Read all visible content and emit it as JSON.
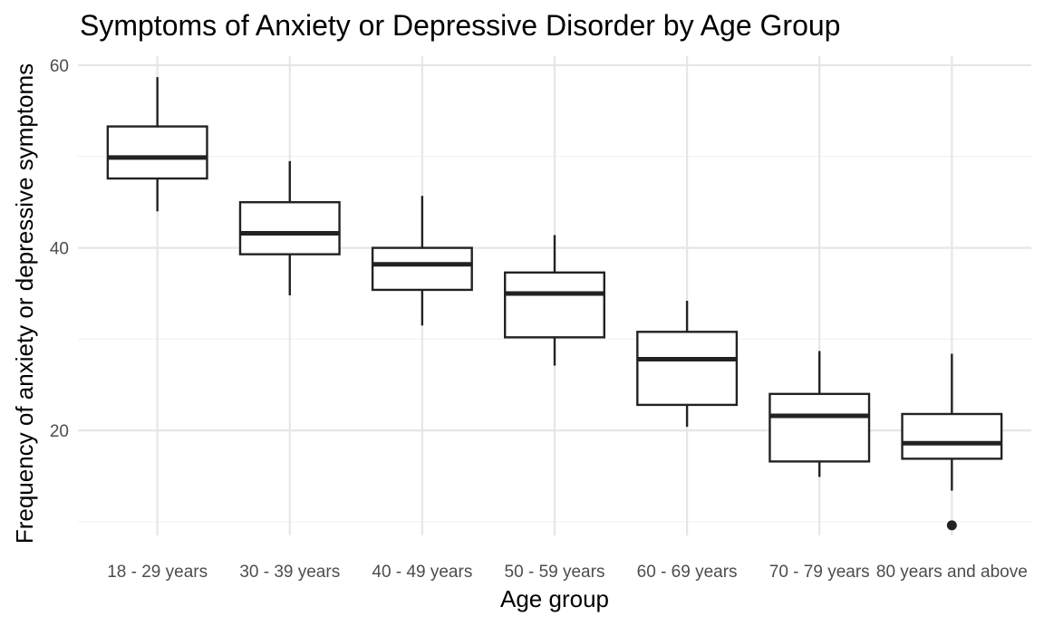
{
  "chart_data": {
    "type": "boxplot",
    "title": "Symptoms of Anxiety or Depressive Disorder by Age Group",
    "xlabel": "Age group",
    "ylabel": "Frequency of anxiety or depressive symptoms",
    "ylim": [
      8.5,
      61
    ],
    "yticks": [
      20,
      40,
      60
    ],
    "grid": true,
    "categories": [
      "18 - 29 years",
      "30 - 39 years",
      "40 - 49 years",
      "50 - 59 years",
      "60 - 69 years",
      "70 - 79 years",
      "80 years and above"
    ],
    "boxes": [
      {
        "min": 44.0,
        "q1": 47.6,
        "median": 49.9,
        "q3": 53.3,
        "max": 58.7,
        "outliers": []
      },
      {
        "min": 34.8,
        "q1": 39.3,
        "median": 41.6,
        "q3": 45.0,
        "max": 49.5,
        "outliers": []
      },
      {
        "min": 31.5,
        "q1": 35.4,
        "median": 38.2,
        "q3": 40.0,
        "max": 45.7,
        "outliers": []
      },
      {
        "min": 27.1,
        "q1": 30.2,
        "median": 35.0,
        "q3": 37.3,
        "max": 41.4,
        "outliers": []
      },
      {
        "min": 20.4,
        "q1": 22.8,
        "median": 27.8,
        "q3": 30.8,
        "max": 34.2,
        "outliers": []
      },
      {
        "min": 14.9,
        "q1": 16.6,
        "median": 21.6,
        "q3": 24.0,
        "max": 28.7,
        "outliers": []
      },
      {
        "min": 13.4,
        "q1": 16.9,
        "median": 18.6,
        "q3": 21.8,
        "max": 28.4,
        "outliers": [
          9.6
        ]
      }
    ]
  }
}
